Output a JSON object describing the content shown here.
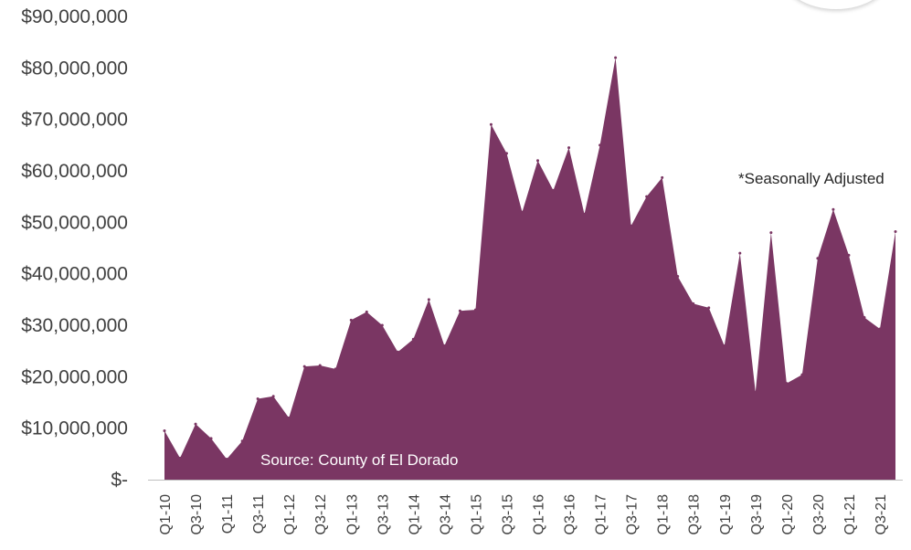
{
  "chart_data": {
    "type": "area",
    "title": "",
    "xlabel": "",
    "ylabel": "",
    "ylim": [
      0,
      90000000
    ],
    "grid": false,
    "legend": "none",
    "colors": {
      "area": "#7a3663",
      "axis": "#bfbfbf",
      "text": "#404040"
    },
    "yticks": [
      {
        "value": 0,
        "label": "$-"
      },
      {
        "value": 10000000,
        "label": "$10,000,000"
      },
      {
        "value": 20000000,
        "label": "$20,000,000"
      },
      {
        "value": 30000000,
        "label": "$30,000,000"
      },
      {
        "value": 40000000,
        "label": "$40,000,000"
      },
      {
        "value": 50000000,
        "label": "$50,000,000"
      },
      {
        "value": 60000000,
        "label": "$60,000,000"
      },
      {
        "value": 70000000,
        "label": "$70,000,000"
      },
      {
        "value": 80000000,
        "label": "$80,000,000"
      },
      {
        "value": 90000000,
        "label": "$90,000,000"
      }
    ],
    "x": [
      "Q1-10",
      "Q2-10",
      "Q3-10",
      "Q4-10",
      "Q1-11",
      "Q2-11",
      "Q3-11",
      "Q4-11",
      "Q1-12",
      "Q2-12",
      "Q3-12",
      "Q4-12",
      "Q1-13",
      "Q2-13",
      "Q3-13",
      "Q4-13",
      "Q1-14",
      "Q2-14",
      "Q3-14",
      "Q4-14",
      "Q1-15",
      "Q2-15",
      "Q3-15",
      "Q4-15",
      "Q1-16",
      "Q2-16",
      "Q3-16",
      "Q4-16",
      "Q1-17",
      "Q2-17",
      "Q3-17",
      "Q4-17",
      "Q1-18",
      "Q2-18",
      "Q3-18",
      "Q4-18",
      "Q1-19",
      "Q2-19",
      "Q3-19",
      "Q4-19",
      "Q1-20",
      "Q2-20",
      "Q3-20",
      "Q4-20",
      "Q1-21",
      "Q2-21",
      "Q3-21",
      "Q4-21"
    ],
    "x_tick_labels_shown": [
      "Q1-10",
      "Q3-10",
      "Q1-11",
      "Q3-11",
      "Q1-12",
      "Q3-12",
      "Q1-13",
      "Q3-13",
      "Q1-14",
      "Q3-14",
      "Q1-15",
      "Q3-15",
      "Q1-16",
      "Q3-16",
      "Q1-17",
      "Q3-17",
      "Q1-18",
      "Q3-18",
      "Q1-19",
      "Q3-19",
      "Q1-20",
      "Q3-20",
      "Q1-21",
      "Q3-21"
    ],
    "series": [
      {
        "values": [
          9500000,
          4200000,
          10800000,
          8000000,
          4000000,
          7500000,
          15700000,
          16200000,
          12000000,
          22000000,
          22200000,
          21500000,
          31000000,
          32600000,
          30000000,
          24800000,
          27300000,
          35000000,
          26000000,
          32800000,
          33000000,
          69000000,
          63400000,
          52000000,
          62000000,
          56200000,
          64500000,
          51600000,
          65000000,
          82000000,
          49300000,
          55000000,
          58700000,
          39500000,
          34200000,
          33400000,
          26000000,
          44000000,
          17000000,
          48000000,
          18700000,
          20400000,
          43000000,
          52500000,
          43600000,
          31500000,
          29300000,
          48200000
        ]
      }
    ],
    "annotations": {
      "seasonal_note": "*Seasonally Adjusted",
      "source": "Source: County of El Dorado"
    }
  }
}
